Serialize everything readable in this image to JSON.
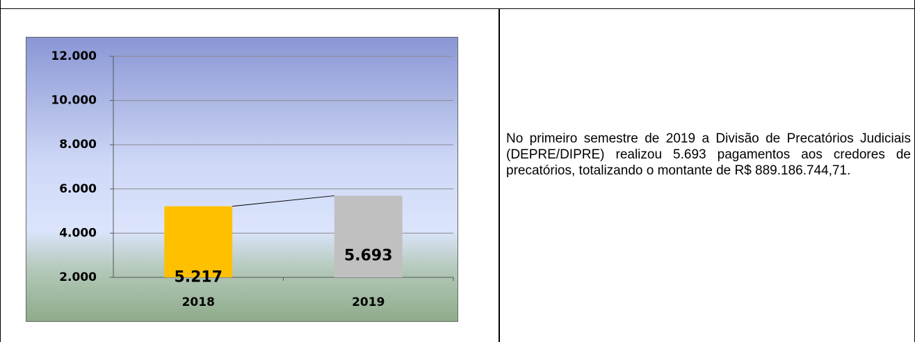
{
  "chart_data": {
    "type": "bar",
    "categories": [
      "2018",
      "2019"
    ],
    "values": [
      5217,
      5693
    ],
    "value_labels": [
      "5.217",
      "5.693"
    ],
    "colors": [
      "#ffc000",
      "#c0c0c0"
    ],
    "ylim": [
      2000,
      12000
    ],
    "yticks": [
      {
        "value": 2000,
        "label": "2.000"
      },
      {
        "value": 4000,
        "label": "4.000"
      },
      {
        "value": 6000,
        "label": "6.000"
      },
      {
        "value": 8000,
        "label": "8.000"
      },
      {
        "value": 10000,
        "label": "10.000"
      },
      {
        "value": 12000,
        "label": "12.000"
      }
    ],
    "grid": true,
    "connector": true
  },
  "text": {
    "paragraph": "No primeiro semestre de 2019 a Divisão de Precatórios Judiciais (DEPRE/DIPRE) realizou 5.693 pagamentos aos credores de precatórios, totalizando o montante de R$ 889.186.744,71."
  }
}
